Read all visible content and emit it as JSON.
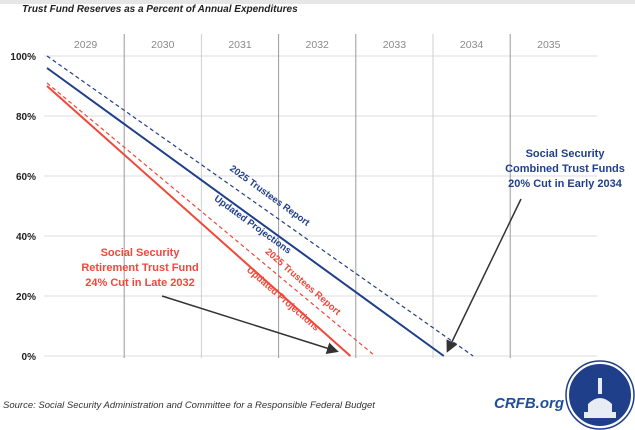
{
  "chart_data": {
    "type": "line",
    "title": "Trust Fund Reserves as a Percent of Annual Expenditures",
    "x_categories": [
      "2029",
      "2030",
      "2031",
      "2032",
      "2033",
      "2034",
      "2035"
    ],
    "xlim": [
      2029,
      2036
    ],
    "ylim": [
      0,
      100
    ],
    "y_ticks": [
      0,
      20,
      40,
      60,
      80,
      100
    ],
    "y_tick_labels": [
      "0%",
      "20%",
      "40%",
      "60%",
      "80%",
      "100%"
    ],
    "grid": true,
    "series": [
      {
        "name": "2025 Trustees Report",
        "group": "combined",
        "style": "dashed",
        "color": "#1f3f8a",
        "points": [
          [
            2029.0,
            100
          ],
          [
            2034.52,
            0
          ]
        ]
      },
      {
        "name": "Updated Projections",
        "group": "combined",
        "style": "solid",
        "color": "#1f3f8a",
        "points": [
          [
            2029.0,
            96
          ],
          [
            2034.14,
            0
          ]
        ]
      },
      {
        "name": "2025 Trustees Report",
        "group": "retirement",
        "style": "dashed",
        "color": "#f0483a",
        "points": [
          [
            2029.0,
            91
          ],
          [
            2033.25,
            0
          ]
        ]
      },
      {
        "name": "Updated Projections",
        "group": "retirement",
        "style": "solid",
        "color": "#f0483a",
        "points": [
          [
            2029.0,
            90
          ],
          [
            2032.93,
            0
          ]
        ]
      }
    ],
    "annotations": [
      {
        "lines": [
          "Social Security",
          "Combined Trust Funds",
          "20% Cut in Early 2034"
        ],
        "color": "#1f3f8a"
      },
      {
        "lines": [
          "Social Security",
          "Retirement Trust Fund",
          "24% Cut in Late 2032"
        ],
        "color": "#f0483a"
      }
    ]
  },
  "footer": {
    "source": "Source: Social Security Administration and Committee for a Responsible Federal Budget",
    "brand": "CRFB.org"
  }
}
